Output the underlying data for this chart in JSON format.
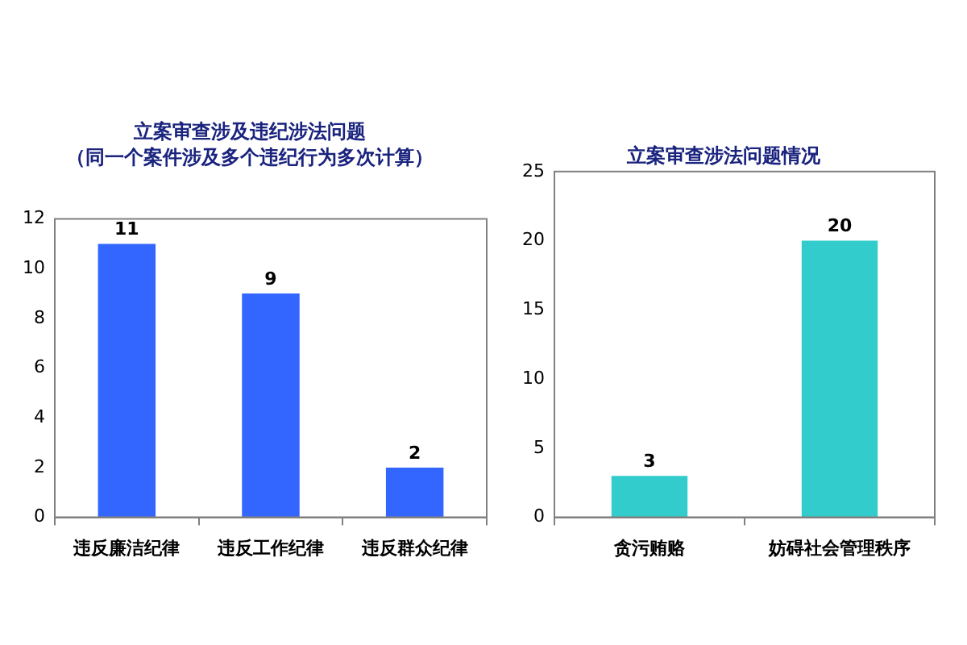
{
  "chart_data": [
    {
      "type": "bar",
      "title": "立案审查涉及违纪涉法问题",
      "subtitle": "（同一个案件涉及多个违纪行为多次计算）",
      "categories": [
        "违反廉洁纪律",
        "违反工作纪律",
        "违反群众纪律"
      ],
      "values": [
        11,
        9,
        2
      ],
      "color": "#3366ff",
      "ylim": [
        0,
        12
      ],
      "yticks": [
        0,
        2,
        4,
        6,
        8,
        10,
        12
      ],
      "grid": false,
      "data_labels": true
    },
    {
      "type": "bar",
      "title": "立案审查涉法问题情况",
      "categories": [
        "贪污贿赂",
        "妨碍社会管理秩序"
      ],
      "values": [
        3,
        20
      ],
      "color": "#33cccc",
      "ylim": [
        0,
        25
      ],
      "yticks": [
        0,
        5,
        10,
        15,
        20,
        25
      ],
      "grid": false,
      "data_labels": true
    }
  ]
}
